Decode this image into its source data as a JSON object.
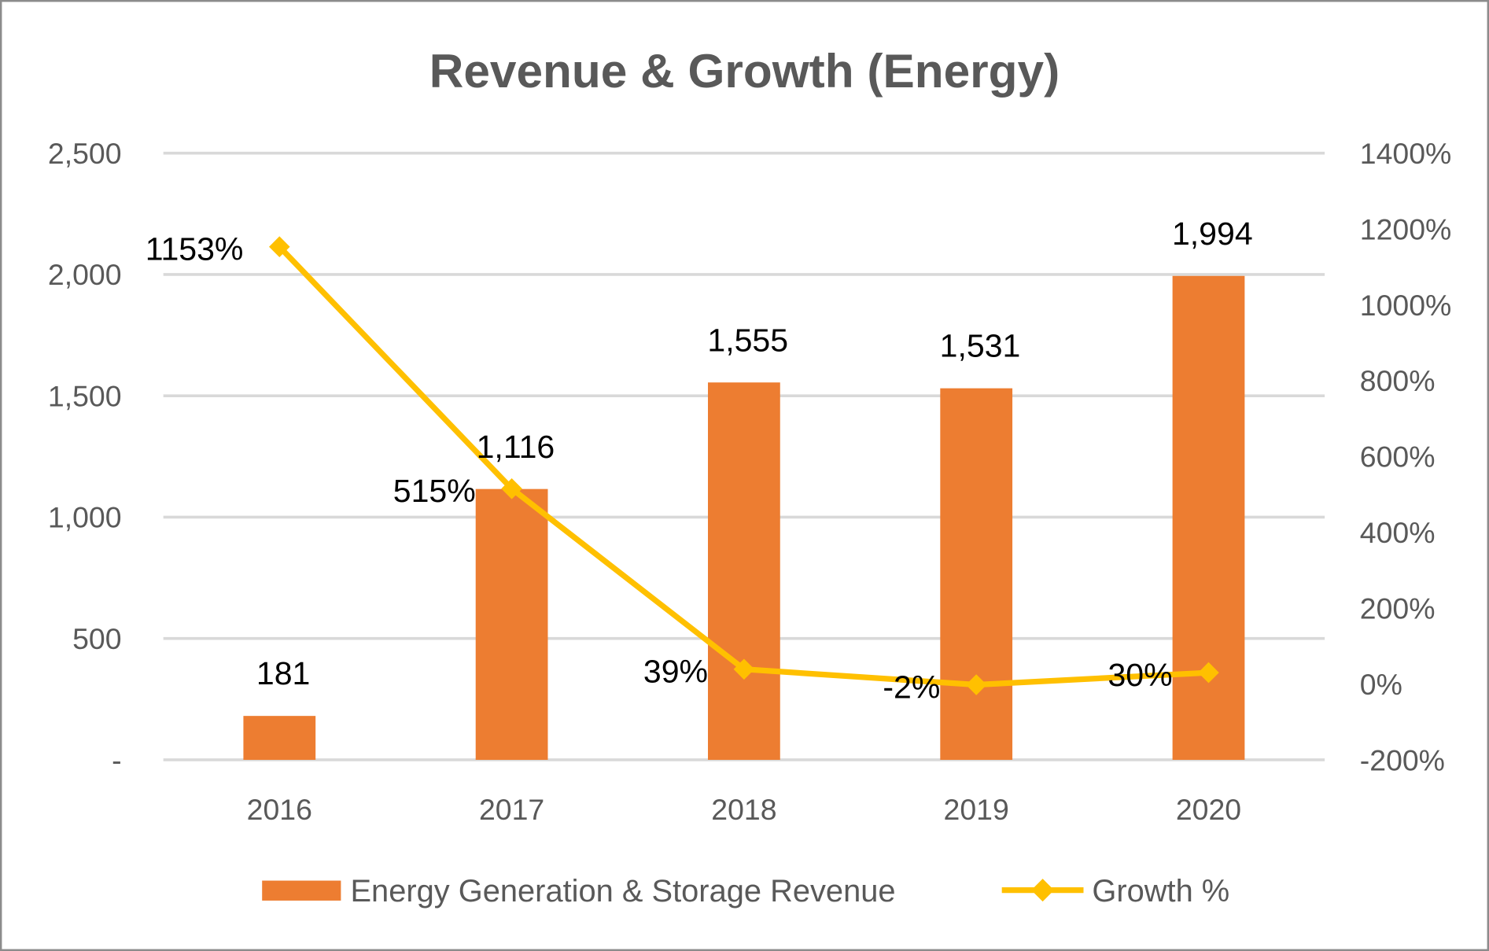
{
  "chart_data": {
    "type": "bar+line",
    "title": "Revenue & Growth (Energy)",
    "categories": [
      "2016",
      "2017",
      "2018",
      "2019",
      "2020"
    ],
    "series": [
      {
        "name": "Energy Generation & Storage Revenue",
        "type": "bar",
        "axis": "left",
        "values": [
          181,
          1116,
          1555,
          1531,
          1994
        ],
        "labels": [
          "181",
          "1,116",
          "1,555",
          "1,531",
          "1,994"
        ],
        "color": "#ED7D31"
      },
      {
        "name": "Growth %",
        "type": "line",
        "axis": "right",
        "marker": "diamond",
        "values": [
          1153,
          515,
          39,
          -2,
          30
        ],
        "labels": [
          "1153%",
          "515%",
          "39%",
          "-2%",
          "30%"
        ],
        "color": "#FFC000"
      }
    ],
    "y_left": {
      "range": [
        0,
        2500
      ],
      "ticks": [
        0,
        500,
        1000,
        1500,
        2000,
        2500
      ],
      "tick_labels": [
        "-",
        "500",
        "1,000",
        "1,500",
        "2,000",
        "2,500"
      ]
    },
    "y_right": {
      "range": [
        -200,
        1400
      ],
      "ticks": [
        -200,
        0,
        200,
        400,
        600,
        800,
        1000,
        1200,
        1400
      ],
      "tick_labels": [
        "-200%",
        "0%",
        "200%",
        "400%",
        "600%",
        "800%",
        "1000%",
        "1200%",
        "1400%"
      ]
    },
    "grid": true,
    "legend_position": "bottom"
  }
}
